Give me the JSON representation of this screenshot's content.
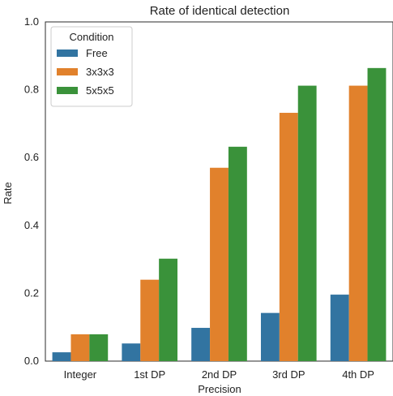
{
  "chart_data": {
    "type": "bar",
    "title": "Rate of identical detection",
    "xlabel": "Precision",
    "ylabel": "Rate",
    "categories": [
      "Integer",
      "1st DP",
      "2nd DP",
      "3rd DP",
      "4th DP"
    ],
    "series": [
      {
        "name": "Free",
        "color": "#3274a1",
        "values": [
          0.026,
          0.052,
          0.098,
          0.142,
          0.196
        ]
      },
      {
        "name": "3x3x3",
        "color": "#e1812c",
        "values": [
          0.079,
          0.24,
          0.57,
          0.732,
          0.812
        ]
      },
      {
        "name": "5x5x5",
        "color": "#3a923a",
        "values": [
          0.079,
          0.302,
          0.632,
          0.812,
          0.864
        ]
      }
    ],
    "ylim": [
      0,
      1.0
    ],
    "yticks": [
      "0.0",
      "0.2",
      "0.4",
      "0.6",
      "0.8",
      "1.0"
    ],
    "grid": false,
    "legend": {
      "title": "Condition",
      "placement": "top-left"
    }
  }
}
